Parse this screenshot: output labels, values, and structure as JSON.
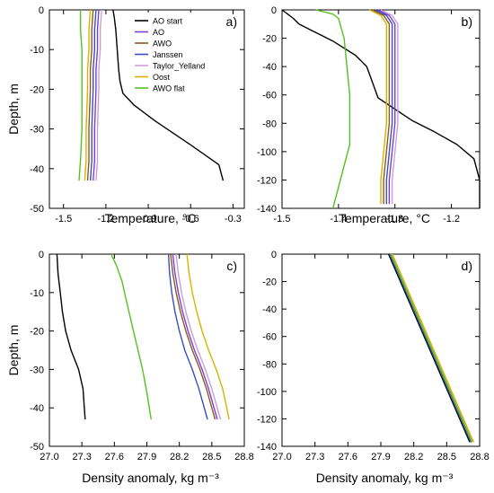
{
  "legend": {
    "entries": [
      {
        "name": "AO start",
        "color": "#000000"
      },
      {
        "name": "AO",
        "color": "#7a3fd9"
      },
      {
        "name": "AWO",
        "color": "#8a5a1e"
      },
      {
        "name": "Janssen",
        "color": "#3a4fb8"
      },
      {
        "name": "Taylor_Yelland",
        "color": "#c9a0d6"
      },
      {
        "name": "Oost",
        "color": "#d9b200"
      },
      {
        "name": "AWO flat",
        "color": "#55c11f"
      }
    ]
  },
  "chart_data": [
    {
      "type": "line",
      "panel_label": "a)",
      "xlabel": "Temperature, °C",
      "ylabel": "Depth, m",
      "xlim": [
        -1.6,
        -0.22
      ],
      "ylim": [
        -50,
        0
      ],
      "xticks": [
        -1.5,
        -1.2,
        -0.9,
        -0.6,
        -0.3
      ],
      "xtick_labels": [
        "-1.5",
        "-1.2",
        "-0.9",
        "-0.6",
        "-0.3"
      ],
      "yticks": [
        0,
        -10,
        -20,
        -30,
        -40,
        -50
      ],
      "ytick_labels": [
        "0",
        "-10",
        "-20",
        "-30",
        "-40",
        "-50"
      ],
      "legend_position": "top-right",
      "series": [
        {
          "name": "AO start",
          "color": "#000000",
          "x": [
            -1.15,
            -1.14,
            -1.13,
            -1.12,
            -1.11,
            -1.1,
            -1.08,
            -1.0,
            -0.85,
            -0.6,
            -0.4,
            -0.37
          ],
          "y": [
            0,
            -2,
            -5,
            -10,
            -15,
            -18,
            -21,
            -24,
            -28,
            -34,
            -39,
            -43
          ]
        },
        {
          "name": "AO",
          "color": "#7a3fd9",
          "x": [
            -1.25,
            -1.26,
            -1.26,
            -1.27,
            -1.27,
            -1.28,
            -1.28,
            -1.29
          ],
          "y": [
            0,
            -5,
            -10,
            -15,
            -20,
            -30,
            -38,
            -43
          ]
        },
        {
          "name": "AWO",
          "color": "#8a5a1e",
          "x": [
            -1.29,
            -1.3,
            -1.3,
            -1.31,
            -1.31,
            -1.32,
            -1.32,
            -1.33
          ],
          "y": [
            0,
            -5,
            -10,
            -15,
            -20,
            -30,
            -38,
            -43
          ]
        },
        {
          "name": "Janssen",
          "color": "#3a4fb8",
          "x": [
            -1.27,
            -1.28,
            -1.28,
            -1.29,
            -1.29,
            -1.3,
            -1.3,
            -1.31
          ],
          "y": [
            0,
            -5,
            -10,
            -15,
            -20,
            -30,
            -38,
            -43
          ]
        },
        {
          "name": "Taylor_Yelland",
          "color": "#c9a0d6",
          "x": [
            -1.23,
            -1.24,
            -1.24,
            -1.25,
            -1.25,
            -1.26,
            -1.26,
            -1.27
          ],
          "y": [
            0,
            -5,
            -10,
            -15,
            -20,
            -30,
            -38,
            -43
          ]
        },
        {
          "name": "Oost",
          "color": "#d9b200",
          "x": [
            -1.31,
            -1.32,
            -1.32,
            -1.33,
            -1.33,
            -1.34,
            -1.34,
            -1.35
          ],
          "y": [
            0,
            -5,
            -10,
            -15,
            -20,
            -30,
            -38,
            -43
          ]
        },
        {
          "name": "AWO flat",
          "color": "#55c11f",
          "x": [
            -1.38,
            -1.38,
            -1.37,
            -1.37,
            -1.37,
            -1.37,
            -1.38,
            -1.39
          ],
          "y": [
            0,
            -5,
            -10,
            -15,
            -20,
            -30,
            -38,
            -43
          ]
        }
      ]
    },
    {
      "type": "line",
      "panel_label": "b)",
      "xlabel": "Temperature, °C",
      "ylabel": "",
      "xlim": [
        -1.5,
        -1.15
      ],
      "ylim": [
        -140,
        0
      ],
      "xticks": [
        -1.5,
        -1.4,
        -1.3,
        -1.2
      ],
      "xtick_labels": [
        "-1.5",
        "-1.4",
        "-1.3",
        "-1.2"
      ],
      "yticks": [
        0,
        -20,
        -40,
        -60,
        -80,
        -100,
        -120,
        -140
      ],
      "ytick_labels": [
        "0",
        "-20",
        "-40",
        "-60",
        "-80",
        "-100",
        "-120",
        "-140"
      ],
      "series": [
        {
          "name": "AO start",
          "color": "#000000",
          "x": [
            -1.5,
            -1.49,
            -1.48,
            -1.47,
            -1.45,
            -1.43,
            -1.41,
            -1.39,
            -1.37,
            -1.35,
            -1.33,
            -1.3,
            -1.27,
            -1.23,
            -1.19,
            -1.16,
            -1.15,
            -1.15
          ],
          "y": [
            0,
            -3,
            -6,
            -10,
            -14,
            -18,
            -22,
            -27,
            -32,
            -40,
            -62,
            -70,
            -78,
            -86,
            -95,
            -105,
            -120,
            -140
          ]
        },
        {
          "name": "AO",
          "color": "#7a3fd9",
          "x": [
            -1.33,
            -1.31,
            -1.3,
            -1.3,
            -1.3,
            -1.3,
            -1.31,
            -1.31
          ],
          "y": [
            0,
            -4,
            -10,
            -20,
            -40,
            -80,
            -120,
            -137
          ]
        },
        {
          "name": "AWO",
          "color": "#8a5a1e",
          "x": [
            -1.34,
            -1.32,
            -1.31,
            -1.31,
            -1.31,
            -1.31,
            -1.32,
            -1.32
          ],
          "y": [
            0,
            -4,
            -10,
            -20,
            -40,
            -80,
            -120,
            -137
          ]
        },
        {
          "name": "Janssen",
          "color": "#3a4fb8",
          "x": [
            -1.335,
            -1.315,
            -1.305,
            -1.305,
            -1.305,
            -1.305,
            -1.315,
            -1.315
          ],
          "y": [
            0,
            -4,
            -10,
            -20,
            -40,
            -80,
            -120,
            -137
          ]
        },
        {
          "name": "Taylor_Yelland",
          "color": "#c9a0d6",
          "x": [
            -1.325,
            -1.305,
            -1.295,
            -1.295,
            -1.295,
            -1.295,
            -1.305,
            -1.305
          ],
          "y": [
            0,
            -4,
            -10,
            -20,
            -40,
            -80,
            -120,
            -137
          ]
        },
        {
          "name": "Oost",
          "color": "#d9b200",
          "x": [
            -1.345,
            -1.325,
            -1.315,
            -1.315,
            -1.315,
            -1.315,
            -1.325,
            -1.325
          ],
          "y": [
            0,
            -4,
            -10,
            -20,
            -40,
            -80,
            -120,
            -137
          ]
        },
        {
          "name": "AWO flat",
          "color": "#55c11f",
          "x": [
            -1.44,
            -1.41,
            -1.4,
            -1.39,
            -1.38,
            -1.38,
            -1.39,
            -1.4,
            -1.41
          ],
          "y": [
            0,
            -3,
            -6,
            -20,
            -60,
            -95,
            -110,
            -125,
            -140
          ]
        }
      ]
    },
    {
      "type": "line",
      "panel_label": "c)",
      "xlabel": "Density anomaly, kg m⁻³",
      "ylabel": "Depth, m",
      "xlim": [
        27.0,
        28.8
      ],
      "ylim": [
        -50,
        0
      ],
      "xticks": [
        27.0,
        27.3,
        27.6,
        27.9,
        28.2,
        28.5,
        28.8
      ],
      "xtick_labels": [
        "27.0",
        "27.3",
        "27.6",
        "27.9",
        "28.2",
        "28.5",
        "28.8"
      ],
      "yticks": [
        0,
        -10,
        -20,
        -30,
        -40,
        -50
      ],
      "ytick_labels": [
        "0",
        "-10",
        "-20",
        "-30",
        "-40",
        "-50"
      ],
      "series": [
        {
          "name": "AO start",
          "color": "#000000",
          "x": [
            27.07,
            27.08,
            27.1,
            27.12,
            27.15,
            27.2,
            27.27,
            27.31,
            27.33
          ],
          "y": [
            0,
            -5,
            -10,
            -15,
            -20,
            -25,
            -30,
            -35,
            -43
          ]
        },
        {
          "name": "AO",
          "color": "#7a3fd9",
          "x": [
            28.14,
            28.16,
            28.19,
            28.23,
            28.28,
            28.34,
            28.41,
            28.47,
            28.55
          ],
          "y": [
            0,
            -5,
            -10,
            -15,
            -20,
            -25,
            -30,
            -35,
            -43
          ]
        },
        {
          "name": "AWO",
          "color": "#8a5a1e",
          "x": [
            28.12,
            28.14,
            28.17,
            28.21,
            28.26,
            28.32,
            28.39,
            28.45,
            28.53
          ],
          "y": [
            0,
            -5,
            -10,
            -15,
            -20,
            -25,
            -30,
            -35,
            -43
          ]
        },
        {
          "name": "Janssen",
          "color": "#3a4fb8",
          "x": [
            28.1,
            28.11,
            28.13,
            28.16,
            28.2,
            28.25,
            28.32,
            28.38,
            28.46
          ],
          "y": [
            0,
            -5,
            -10,
            -15,
            -20,
            -25,
            -30,
            -35,
            -43
          ]
        },
        {
          "name": "Taylor_Yelland",
          "color": "#c9a0d6",
          "x": [
            28.17,
            28.19,
            28.22,
            28.26,
            28.31,
            28.37,
            28.44,
            28.5,
            28.58
          ],
          "y": [
            0,
            -5,
            -10,
            -15,
            -20,
            -25,
            -30,
            -35,
            -43
          ]
        },
        {
          "name": "Oost",
          "color": "#d9b200",
          "x": [
            28.27,
            28.29,
            28.32,
            28.36,
            28.41,
            28.47,
            28.54,
            28.6,
            28.66
          ],
          "y": [
            0,
            -5,
            -10,
            -15,
            -20,
            -25,
            -30,
            -35,
            -43
          ]
        },
        {
          "name": "AWO flat",
          "color": "#55c11f",
          "x": [
            27.57,
            27.62,
            27.67,
            27.71,
            27.76,
            27.81,
            27.86,
            27.9,
            27.94
          ],
          "y": [
            0,
            -3,
            -7,
            -12,
            -18,
            -24,
            -30,
            -36,
            -43
          ]
        }
      ]
    },
    {
      "type": "line",
      "panel_label": "d)",
      "xlabel": "Density anomaly, kg m⁻³",
      "ylabel": "",
      "xlim": [
        27.0,
        28.8
      ],
      "ylim": [
        -140,
        0
      ],
      "xticks": [
        27.0,
        27.3,
        27.6,
        27.9,
        28.2,
        28.5,
        28.8
      ],
      "xtick_labels": [
        "27.0",
        "27.3",
        "27.6",
        "27.9",
        "28.2",
        "28.5",
        "28.8"
      ],
      "yticks": [
        0,
        -20,
        -40,
        -60,
        -80,
        -100,
        -120,
        -140
      ],
      "ytick_labels": [
        "0",
        "-20",
        "-40",
        "-60",
        "-80",
        "-100",
        "-120",
        "-140"
      ],
      "series": [
        {
          "name": "AO start",
          "color": "#000000",
          "x": [
            27.97,
            28.71
          ],
          "y": [
            0,
            -137
          ]
        },
        {
          "name": "AO",
          "color": "#7a3fd9",
          "x": [
            27.99,
            28.73
          ],
          "y": [
            0,
            -137
          ]
        },
        {
          "name": "AWO",
          "color": "#8a5a1e",
          "x": [
            27.985,
            28.725
          ],
          "y": [
            0,
            -137
          ]
        },
        {
          "name": "Janssen",
          "color": "#3a4fb8",
          "x": [
            27.98,
            28.72
          ],
          "y": [
            0,
            -137
          ]
        },
        {
          "name": "Taylor_Yelland",
          "color": "#c9a0d6",
          "x": [
            28.0,
            28.74
          ],
          "y": [
            0,
            -137
          ]
        },
        {
          "name": "Oost",
          "color": "#d9b200",
          "x": [
            28.005,
            28.745
          ],
          "y": [
            0,
            -137
          ]
        },
        {
          "name": "AWO flat",
          "color": "#55c11f",
          "x": [
            27.99,
            28.73
          ],
          "y": [
            0,
            -137
          ]
        }
      ]
    }
  ]
}
